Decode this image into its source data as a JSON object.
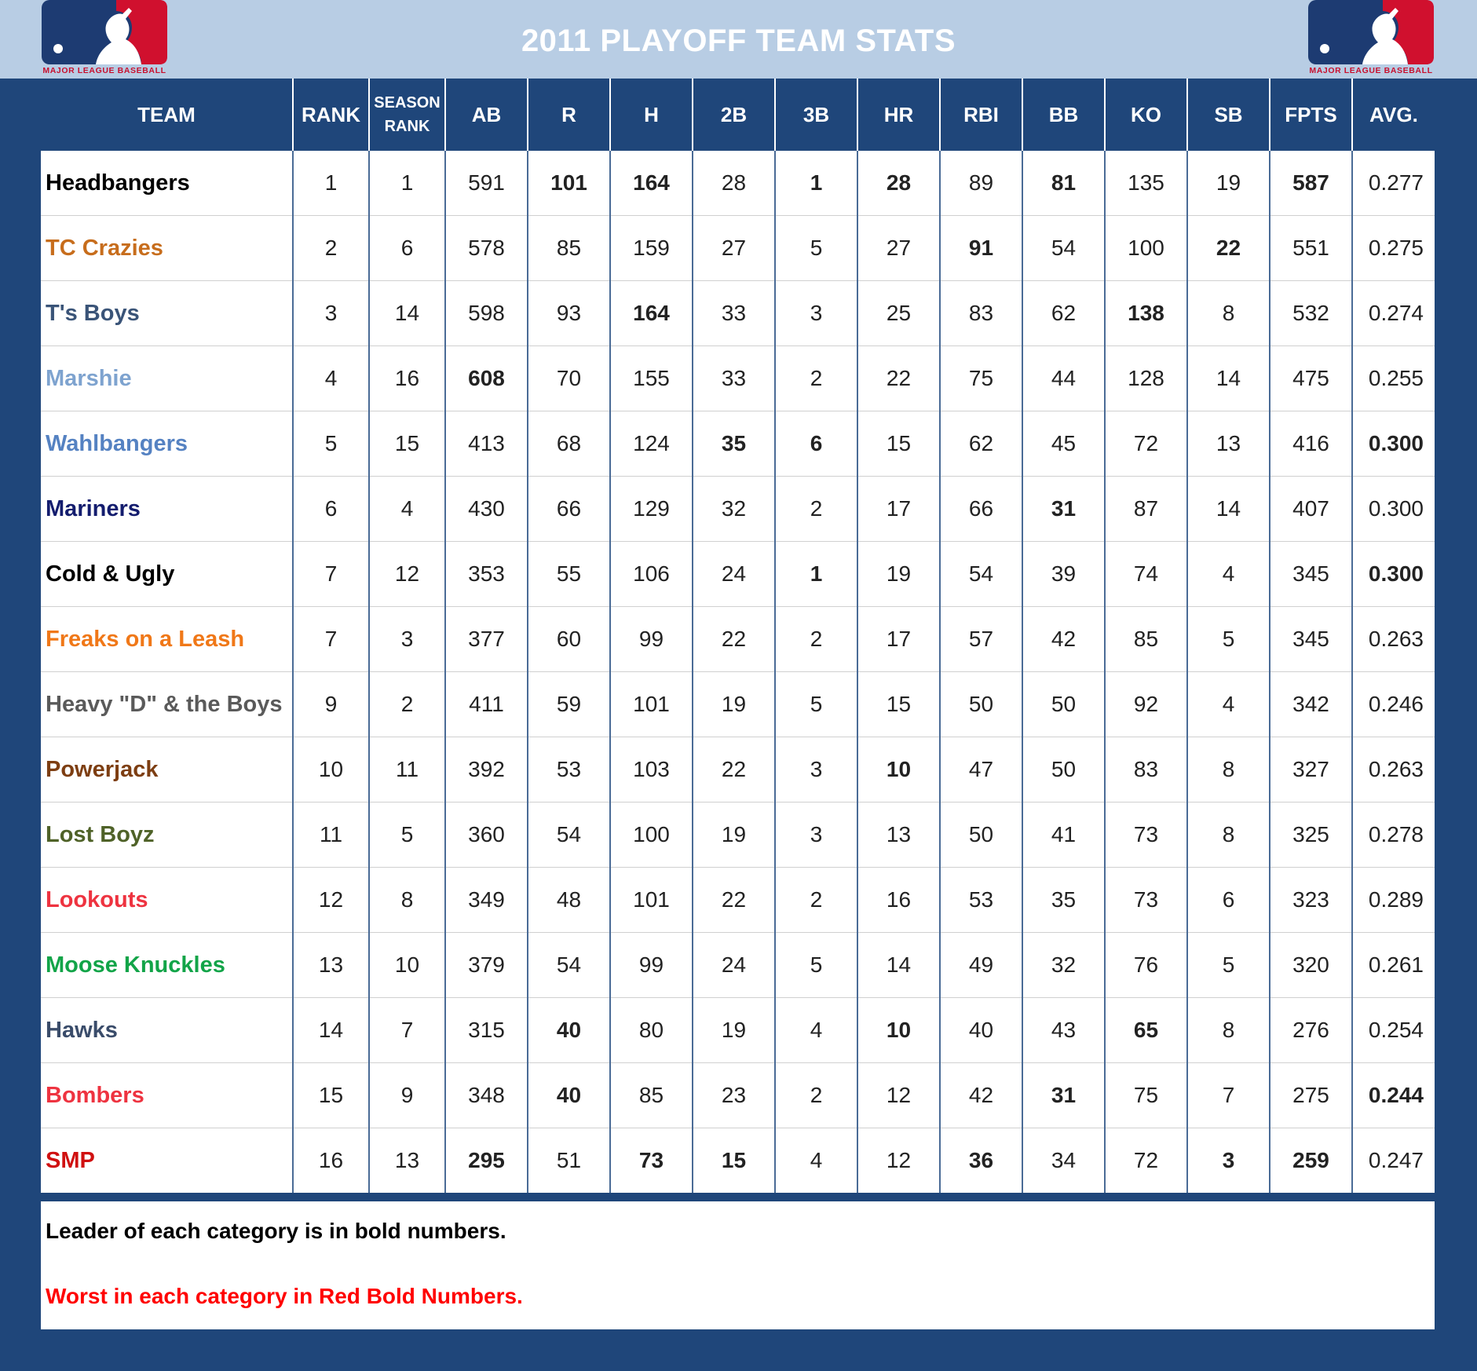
{
  "header": {
    "title": "2011 PLAYOFF TEAM STATS",
    "logo_text": "MAJOR LEAGUE BASEBALL",
    "logo_colors": {
      "blue": "#1d3b72",
      "red": "#d0102e"
    }
  },
  "colors": {
    "background": "#1f467a",
    "topbar": "#b8cde4",
    "lead": "#000000",
    "worst": "#ff0000"
  },
  "table": {
    "columns": [
      "TEAM",
      "RANK",
      "SEASON RANK",
      "AB",
      "R",
      "H",
      "2B",
      "3B",
      "HR",
      "RBI",
      "BB",
      "KO",
      "SB",
      "FPTS",
      "AVG."
    ],
    "rows": [
      {
        "team": "Headbangers",
        "color": "#000000",
        "values": [
          "1",
          "1",
          "591",
          "101",
          "164",
          "28",
          "1",
          "28",
          "89",
          "81",
          "135",
          "19",
          "587",
          "0.277"
        ],
        "styles": [
          "",
          "",
          "",
          "lead",
          "lead",
          "",
          "worst",
          "lead",
          "",
          "lead",
          "",
          "",
          "lead",
          ""
        ]
      },
      {
        "team": "TC Crazies",
        "color": "#c76d1c",
        "values": [
          "2",
          "6",
          "578",
          "85",
          "159",
          "27",
          "5",
          "27",
          "91",
          "54",
          "100",
          "22",
          "551",
          "0.275"
        ],
        "styles": [
          "",
          "",
          "",
          "",
          "",
          "",
          "",
          "",
          "lead",
          "",
          "",
          "lead",
          "",
          ""
        ]
      },
      {
        "team": "T's Boys",
        "color": "#3a5478",
        "values": [
          "3",
          "14",
          "598",
          "93",
          "164",
          "33",
          "3",
          "25",
          "83",
          "62",
          "138",
          "8",
          "532",
          "0.274"
        ],
        "styles": [
          "",
          "",
          "",
          "",
          "lead",
          "",
          "",
          "",
          "",
          "",
          "worst",
          "",
          "",
          ""
        ]
      },
      {
        "team": "Marshie",
        "color": "#7ea3cf",
        "values": [
          "4",
          "16",
          "608",
          "70",
          "155",
          "33",
          "2",
          "22",
          "75",
          "44",
          "128",
          "14",
          "475",
          "0.255"
        ],
        "styles": [
          "",
          "",
          "lead",
          "",
          "",
          "",
          "",
          "",
          "",
          "",
          "",
          "",
          "",
          ""
        ]
      },
      {
        "team": "Wahlbangers",
        "color": "#5582c2",
        "values": [
          "5",
          "15",
          "413",
          "68",
          "124",
          "35",
          "6",
          "15",
          "62",
          "45",
          "72",
          "13",
          "416",
          "0.300"
        ],
        "styles": [
          "",
          "",
          "",
          "",
          "",
          "lead",
          "lead",
          "",
          "",
          "",
          "",
          "",
          "",
          "lead"
        ]
      },
      {
        "team": "Mariners",
        "color": "#141d6e",
        "values": [
          "6",
          "4",
          "430",
          "66",
          "129",
          "32",
          "2",
          "17",
          "66",
          "31",
          "87",
          "14",
          "407",
          "0.300"
        ],
        "styles": [
          "",
          "",
          "",
          "",
          "",
          "",
          "",
          "",
          "",
          "worst",
          "",
          "",
          "",
          ""
        ]
      },
      {
        "team": "Cold & Ugly",
        "color": "#000000",
        "values": [
          "7",
          "12",
          "353",
          "55",
          "106",
          "24",
          "1",
          "19",
          "54",
          "39",
          "74",
          "4",
          "345",
          "0.300"
        ],
        "styles": [
          "",
          "",
          "",
          "",
          "",
          "",
          "worst",
          "",
          "",
          "",
          "",
          "",
          "",
          "lead"
        ]
      },
      {
        "team": "Freaks on a Leash",
        "color": "#f07818",
        "values": [
          "7",
          "3",
          "377",
          "60",
          "99",
          "22",
          "2",
          "17",
          "57",
          "42",
          "85",
          "5",
          "345",
          "0.263"
        ],
        "styles": [
          "",
          "",
          "",
          "",
          "",
          "",
          "",
          "",
          "",
          "",
          "",
          "",
          "",
          ""
        ]
      },
      {
        "team": "Heavy \"D\" & the Boys",
        "color": "#5a5a5a",
        "values": [
          "9",
          "2",
          "411",
          "59",
          "101",
          "19",
          "5",
          "15",
          "50",
          "50",
          "92",
          "4",
          "342",
          "0.246"
        ],
        "styles": [
          "",
          "",
          "",
          "",
          "",
          "",
          "",
          "",
          "",
          "",
          "",
          "",
          "",
          ""
        ]
      },
      {
        "team": "Powerjack",
        "color": "#7d3e12",
        "values": [
          "10",
          "11",
          "392",
          "53",
          "103",
          "22",
          "3",
          "10",
          "47",
          "50",
          "83",
          "8",
          "327",
          "0.263"
        ],
        "styles": [
          "",
          "",
          "",
          "",
          "",
          "",
          "",
          "worst",
          "",
          "",
          "",
          "",
          "",
          ""
        ]
      },
      {
        "team": "Lost Boyz",
        "color": "#4f6228",
        "values": [
          "11",
          "5",
          "360",
          "54",
          "100",
          "19",
          "3",
          "13",
          "50",
          "41",
          "73",
          "8",
          "325",
          "0.278"
        ],
        "styles": [
          "",
          "",
          "",
          "",
          "",
          "",
          "",
          "",
          "",
          "",
          "",
          "",
          "",
          ""
        ]
      },
      {
        "team": "Lookouts",
        "color": "#ee3340",
        "values": [
          "12",
          "8",
          "349",
          "48",
          "101",
          "22",
          "2",
          "16",
          "53",
          "35",
          "73",
          "6",
          "323",
          "0.289"
        ],
        "styles": [
          "",
          "",
          "",
          "",
          "",
          "",
          "",
          "",
          "",
          "",
          "",
          "",
          "",
          ""
        ]
      },
      {
        "team": "Moose Knuckles",
        "color": "#12a448",
        "values": [
          "13",
          "10",
          "379",
          "54",
          "99",
          "24",
          "5",
          "14",
          "49",
          "32",
          "76",
          "5",
          "320",
          "0.261"
        ],
        "styles": [
          "",
          "",
          "",
          "",
          "",
          "",
          "",
          "",
          "",
          "",
          "",
          "",
          "",
          ""
        ]
      },
      {
        "team": "Hawks",
        "color": "#3a4c6a",
        "values": [
          "14",
          "7",
          "315",
          "40",
          "80",
          "19",
          "4",
          "10",
          "40",
          "43",
          "65",
          "8",
          "276",
          "0.254"
        ],
        "styles": [
          "",
          "",
          "",
          "worst",
          "",
          "",
          "",
          "worst",
          "",
          "",
          "lead",
          "",
          "",
          ""
        ]
      },
      {
        "team": "Bombers",
        "color": "#ee3340",
        "values": [
          "15",
          "9",
          "348",
          "40",
          "85",
          "23",
          "2",
          "12",
          "42",
          "31",
          "75",
          "7",
          "275",
          "0.244"
        ],
        "styles": [
          "",
          "",
          "",
          "worst",
          "",
          "",
          "",
          "",
          "",
          "worst",
          "",
          "",
          "",
          "worst"
        ]
      },
      {
        "team": "SMP",
        "color": "#d01010",
        "values": [
          "16",
          "13",
          "295",
          "51",
          "73",
          "15",
          "4",
          "12",
          "36",
          "34",
          "72",
          "3",
          "259",
          "0.247"
        ],
        "styles": [
          "",
          "",
          "worst",
          "",
          "worst",
          "worst",
          "",
          "",
          "worst",
          "",
          "",
          "worst",
          "worst",
          ""
        ]
      }
    ]
  },
  "notes": {
    "leader": "Leader of each category is in bold numbers.",
    "worst": "Worst in each category in Red Bold Numbers."
  }
}
